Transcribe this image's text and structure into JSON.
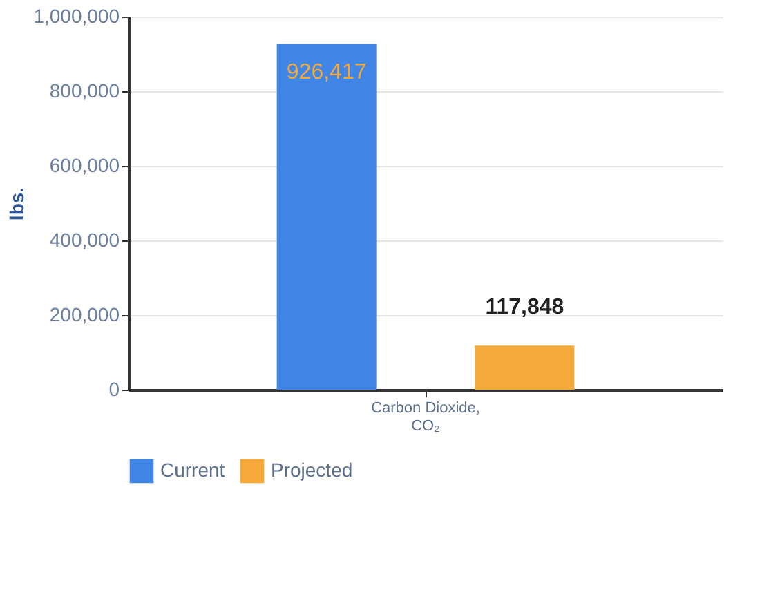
{
  "chart_data": {
    "type": "bar",
    "ylabel": "lbs.",
    "categories": [
      "Carbon Dioxide, CO₂"
    ],
    "series": [
      {
        "name": "Current",
        "color": "#3f86e6",
        "values": [
          926417
        ],
        "value_labels": [
          "926,417"
        ]
      },
      {
        "name": "Projected",
        "color": "#f5a93a",
        "values": [
          117848
        ],
        "value_labels": [
          "117,848"
        ]
      }
    ],
    "ylim": [
      0,
      1000000
    ],
    "yticks": [
      {
        "value": 0,
        "label": "0"
      },
      {
        "value": 200000,
        "label": "200,000"
      },
      {
        "value": 400000,
        "label": "400,000"
      },
      {
        "value": 600000,
        "label": "600,000"
      },
      {
        "value": 800000,
        "label": "800,000"
      },
      {
        "value": 1000000,
        "label": "1,000,000"
      }
    ],
    "grid": "y",
    "legend": "bottom"
  }
}
